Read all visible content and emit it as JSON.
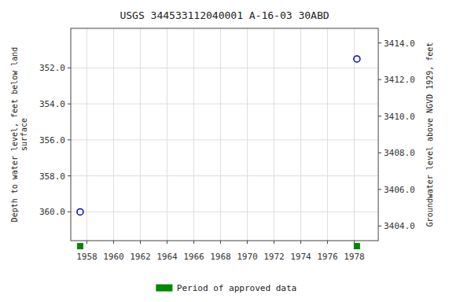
{
  "chart_data": {
    "type": "scatter",
    "title": "USGS 344533112040001 A-16-03 30ABD",
    "ylabel": "Depth to water level, feet below land\nsurface",
    "y2label": "Groundwater level above NGVD 1929, feet",
    "xlim": [
      1956.8,
      1979.8
    ],
    "xticks": [
      1958,
      1960,
      1962,
      1964,
      1966,
      1968,
      1970,
      1972,
      1974,
      1976,
      1978
    ],
    "ylim": [
      361.6,
      349.8
    ],
    "yticks": [
      {
        "value": 352.0,
        "label": "352.0"
      },
      {
        "value": 354.0,
        "label": "354.0"
      },
      {
        "value": 356.0,
        "label": "356.0"
      },
      {
        "value": 358.0,
        "label": "358.0"
      },
      {
        "value": 360.0,
        "label": "360.0"
      }
    ],
    "y2lim": [
      3403.2,
      3414.8
    ],
    "y2ticks": [
      {
        "value": 3404.0,
        "label": "3404.0"
      },
      {
        "value": 3406.0,
        "label": "3406.0"
      },
      {
        "value": 3408.0,
        "label": "3408.0"
      },
      {
        "value": 3410.0,
        "label": "3410.0"
      },
      {
        "value": 3412.0,
        "label": "3412.0"
      },
      {
        "value": 3414.0,
        "label": "3414.0"
      }
    ],
    "grid": true,
    "legend": "bottom",
    "series": [
      {
        "type": "scatter",
        "x": [
          1957.5,
          1978.2
        ],
        "values": [
          360.0,
          351.5
        ],
        "color": "#0000cc",
        "marker": "circle"
      },
      {
        "name": "Period of approved data",
        "type": "scatter",
        "x": [
          1957.5,
          1978.2
        ],
        "color": "#008800",
        "marker": "square"
      }
    ]
  }
}
